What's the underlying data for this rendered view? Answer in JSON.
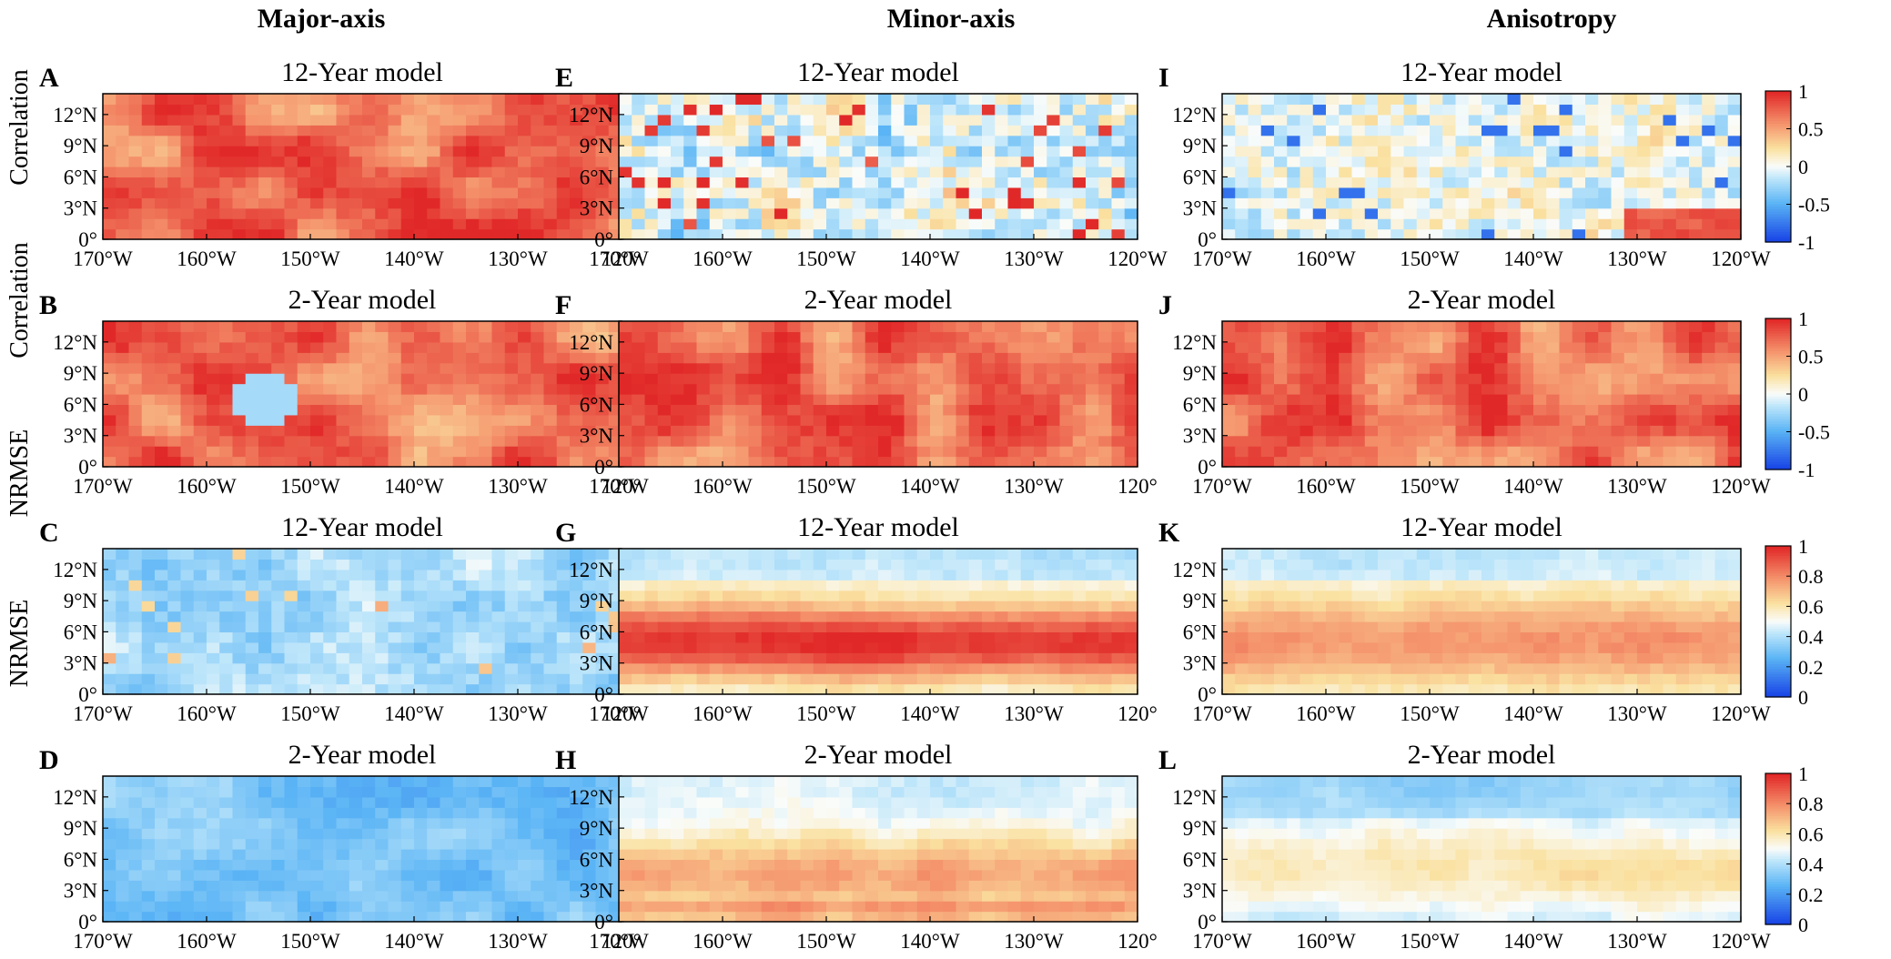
{
  "figure": {
    "column_titles": [
      "Major-axis",
      "Minor-axis",
      "Anisotropy"
    ],
    "row_labels": [
      "Correlation",
      "Correlation",
      "NRMSE",
      "NRMSE"
    ]
  },
  "chart_data": [
    {
      "type": "heatmap",
      "letter": "A",
      "title": "12-Year model",
      "column": "Major-axis",
      "metric": "Correlation",
      "pattern": "corr_high",
      "xticks": [
        "170°W",
        "160°W",
        "150°W",
        "140°W",
        "130°W",
        "120°"
      ],
      "yticks": [
        "0°",
        "3°N",
        "6°N",
        "9°N",
        "12°N"
      ],
      "xlim": [
        -170,
        -120
      ],
      "ylim": [
        0,
        14
      ],
      "colorbar": null
    },
    {
      "type": "heatmap",
      "letter": "E",
      "title": "12-Year model",
      "column": "Minor-axis",
      "metric": "Correlation",
      "pattern": "corr_mixed",
      "xticks": [
        "170°W",
        "160°W",
        "150°W",
        "140°W",
        "130°W",
        "120°W"
      ],
      "yticks": [
        "0°",
        "3°N",
        "6°N",
        "9°N",
        "12°N"
      ],
      "xlim": [
        -170,
        -120
      ],
      "ylim": [
        0,
        14
      ],
      "colorbar": null
    },
    {
      "type": "heatmap",
      "letter": "I",
      "title": "12-Year model",
      "column": "Anisotropy",
      "metric": "Correlation",
      "pattern": "corr_aniso12",
      "xticks": [
        "170°W",
        "160°W",
        "150°W",
        "140°W",
        "130°W",
        "120°W"
      ],
      "yticks": [
        "0°",
        "3°N",
        "6°N",
        "9°N",
        "12°N"
      ],
      "xlim": [
        -170,
        -120
      ],
      "ylim": [
        0,
        14
      ],
      "colorbar": {
        "range": [
          -1,
          1
        ],
        "ticks": [
          "1",
          "0.5",
          "0",
          "-0.5",
          "-1"
        ]
      }
    },
    {
      "type": "heatmap",
      "letter": "B",
      "title": "2-Year model",
      "column": "Major-axis",
      "metric": "Correlation",
      "pattern": "corr_high_b",
      "xticks": [
        "170°W",
        "160°W",
        "150°W",
        "140°W",
        "130°W",
        "120°"
      ],
      "yticks": [
        "0°",
        "3°N",
        "6°N",
        "9°N",
        "12°N"
      ],
      "xlim": [
        -170,
        -120
      ],
      "ylim": [
        0,
        14
      ],
      "colorbar": null
    },
    {
      "type": "heatmap",
      "letter": "F",
      "title": "2-Year model",
      "column": "Minor-axis",
      "metric": "Correlation",
      "pattern": "corr_high",
      "xticks": [
        "170°W",
        "160°W",
        "150°W",
        "140°W",
        "130°W",
        "120°"
      ],
      "yticks": [
        "0°",
        "3°N",
        "6°N",
        "9°N",
        "12°N"
      ],
      "xlim": [
        -170,
        -120
      ],
      "ylim": [
        0,
        14
      ],
      "colorbar": null
    },
    {
      "type": "heatmap",
      "letter": "J",
      "title": "2-Year model",
      "column": "Anisotropy",
      "metric": "Correlation",
      "pattern": "corr_high",
      "xticks": [
        "170°W",
        "160°W",
        "150°W",
        "140°W",
        "130°W",
        "120°W"
      ],
      "yticks": [
        "0°",
        "3°N",
        "6°N",
        "9°N",
        "12°N"
      ],
      "xlim": [
        -170,
        -120
      ],
      "ylim": [
        0,
        14
      ],
      "colorbar": {
        "range": [
          -1,
          1
        ],
        "ticks": [
          "1",
          "0.5",
          "0",
          "-0.5",
          "-1"
        ]
      }
    },
    {
      "type": "heatmap",
      "letter": "C",
      "title": "12-Year model",
      "column": "Major-axis",
      "metric": "NRMSE",
      "pattern": "nrmse_low",
      "xticks": [
        "170°W",
        "160°W",
        "150°W",
        "140°W",
        "130°W",
        "120°"
      ],
      "yticks": [
        "0°",
        "3°N",
        "6°N",
        "9°N",
        "12°N"
      ],
      "xlim": [
        -170,
        -120
      ],
      "ylim": [
        0,
        14
      ],
      "colorbar": null
    },
    {
      "type": "heatmap",
      "letter": "G",
      "title": "12-Year model",
      "column": "Minor-axis",
      "metric": "NRMSE",
      "pattern": "nrmse_band_strong",
      "xticks": [
        "170°W",
        "160°W",
        "150°W",
        "140°W",
        "130°W",
        "120°"
      ],
      "yticks": [
        "0°",
        "3°N",
        "6°N",
        "9°N",
        "12°N"
      ],
      "xlim": [
        -170,
        -120
      ],
      "ylim": [
        0,
        14
      ],
      "colorbar": null
    },
    {
      "type": "heatmap",
      "letter": "K",
      "title": "12-Year model",
      "column": "Anisotropy",
      "metric": "NRMSE",
      "pattern": "nrmse_band_mid",
      "xticks": [
        "170°W",
        "160°W",
        "150°W",
        "140°W",
        "130°W",
        "120°W"
      ],
      "yticks": [
        "0°",
        "3°N",
        "6°N",
        "9°N",
        "12°N"
      ],
      "xlim": [
        -170,
        -120
      ],
      "ylim": [
        0,
        14
      ],
      "colorbar": {
        "range": [
          0,
          1
        ],
        "ticks": [
          "1",
          "0.8",
          "0.6",
          "0.4",
          "0.2",
          "0"
        ]
      }
    },
    {
      "type": "heatmap",
      "letter": "D",
      "title": "2-Year model",
      "column": "Major-axis",
      "metric": "NRMSE",
      "pattern": "nrmse_very_low",
      "xticks": [
        "170°W",
        "160°W",
        "150°W",
        "140°W",
        "130°W",
        "120°"
      ],
      "yticks": [
        "0°",
        "3°N",
        "6°N",
        "9°N",
        "12°N"
      ],
      "xlim": [
        -170,
        -120
      ],
      "ylim": [
        0,
        14
      ],
      "colorbar": null
    },
    {
      "type": "heatmap",
      "letter": "H",
      "title": "2-Year model",
      "column": "Minor-axis",
      "metric": "NRMSE",
      "pattern": "nrmse_band_soft",
      "xticks": [
        "170°W",
        "160°W",
        "150°W",
        "140°W",
        "130°W",
        "120°"
      ],
      "yticks": [
        "0°",
        "3°N",
        "6°N",
        "9°N",
        "12°N"
      ],
      "xlim": [
        -170,
        -120
      ],
      "ylim": [
        0,
        14
      ],
      "colorbar": null
    },
    {
      "type": "heatmap",
      "letter": "L",
      "title": "2-Year model",
      "column": "Anisotropy",
      "metric": "NRMSE",
      "pattern": "nrmse_aniso2",
      "xticks": [
        "170°W",
        "160°W",
        "150°W",
        "140°W",
        "130°W",
        "120°W"
      ],
      "yticks": [
        "0°",
        "3°N",
        "6°N",
        "9°N",
        "12°N"
      ],
      "xlim": [
        -170,
        -120
      ],
      "ylim": [
        0,
        14
      ],
      "colorbar": {
        "range": [
          0,
          1
        ],
        "ticks": [
          "1",
          "0.8",
          "0.6",
          "0.4",
          "0.2",
          "0"
        ]
      }
    }
  ]
}
